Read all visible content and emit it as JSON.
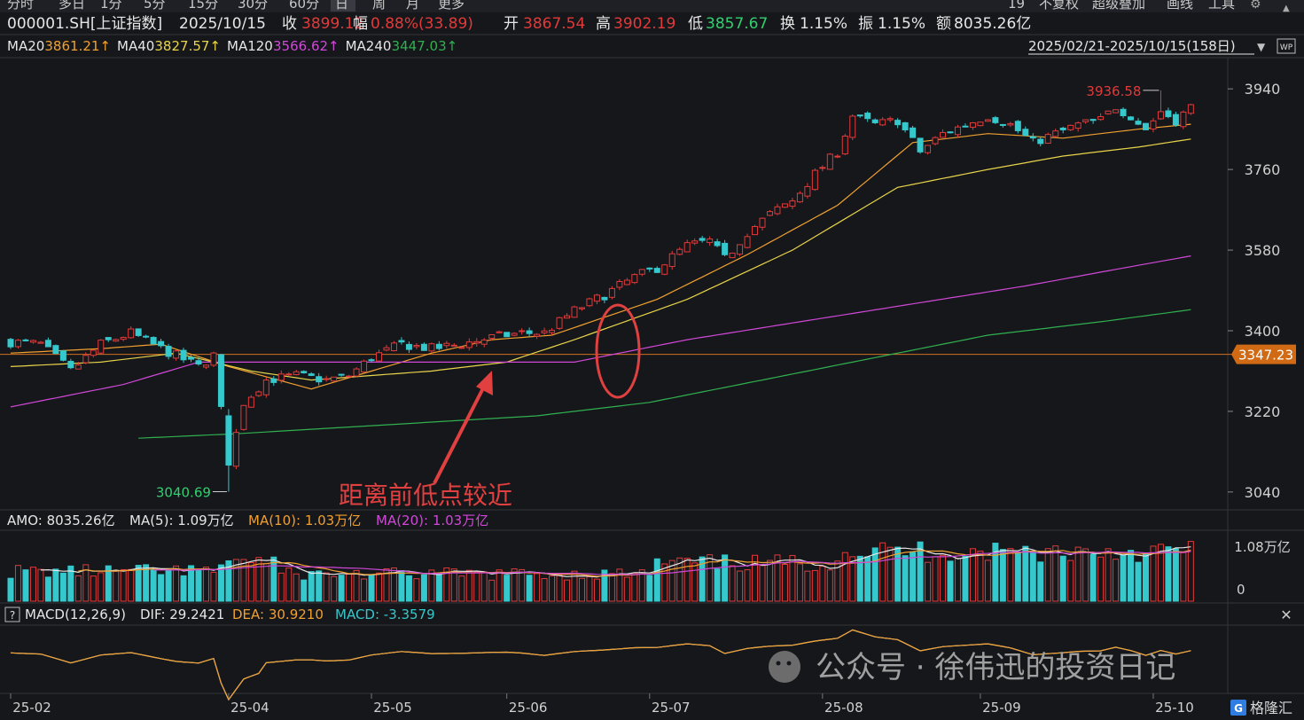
{
  "toolbar": {
    "periods": [
      "分时",
      "多日",
      "1分",
      "5分",
      "15分",
      "30分",
      "60分",
      "日",
      "周",
      "月",
      "更多"
    ],
    "active_period": "日",
    "right_items": [
      "19",
      "不复权",
      "超级叠加",
      "画线",
      "工具"
    ]
  },
  "quote": {
    "symbol": "000001.SH[上证指数]",
    "date": "2025/10/15",
    "close_label": "收",
    "close": "3899.12",
    "change_label": "幅",
    "change": "0.88%(33.89)",
    "open_label": "开",
    "open": "3867.54",
    "high_label": "高",
    "high": "3902.19",
    "low_label": "低",
    "low": "3857.67",
    "turnover_label": "换",
    "turnover": "1.15%",
    "amplitude_label": "振",
    "amplitude": "1.15%",
    "amount_label": "额",
    "amount": "8035.26亿"
  },
  "ma_legend": [
    {
      "name": "MA20",
      "value": "3861.21↑",
      "color": "#f0a030"
    },
    {
      "name": "MA40",
      "value": "3827.57↑",
      "color": "#e8d44a"
    },
    {
      "name": "MA120",
      "value": "3566.62↑",
      "color": "#d048d8"
    },
    {
      "name": "MA240",
      "value": "3447.03↑",
      "color": "#30b050"
    }
  ],
  "range_label": "2025/02/21-2025/10/15(158日)",
  "main_chart": {
    "y_ticks": [
      "3940",
      "3760",
      "3580",
      "3400",
      "3220",
      "3040"
    ],
    "ylim": [
      3010,
      3980
    ],
    "high_mark": "3936.58",
    "low_mark": "3040.69",
    "hline_value": 3347.23,
    "hline_label": "3347.23",
    "annotation": "距离前低点较近"
  },
  "volume_legend": {
    "title": "AMO: 8035.26亿",
    "ma5": "MA(5): 1.09万亿",
    "ma10": "MA(10): 1.03万亿",
    "ma20": "MA(20): 1.03万亿"
  },
  "volume_ticks": [
    "1.08万亿",
    "0"
  ],
  "macd_legend": {
    "title": "MACD(12,26,9)",
    "dif": "DIF: 29.2421",
    "dea": "DEA: 30.9210",
    "macd": "MACD: -3.3579"
  },
  "watermark": "公众号 · 徐伟迅的投资日记",
  "brand": "格隆汇",
  "x_ticks": [
    {
      "label": "25-02",
      "i": 0
    },
    {
      "label": "25-04",
      "i": 29
    },
    {
      "label": "25-05",
      "i": 48
    },
    {
      "label": "25-06",
      "i": 66
    },
    {
      "label": "25-07",
      "i": 85
    },
    {
      "label": "25-08",
      "i": 108
    },
    {
      "label": "25-09",
      "i": 129
    },
    {
      "label": "25-10",
      "i": 152
    }
  ],
  "colors": {
    "up": "#e03a3a",
    "down": "#35c8cc",
    "ma20": "#f0a030",
    "ma40": "#e8d44a",
    "ma120": "#d048d8",
    "ma240": "#30b050",
    "hline": "#d07020",
    "circle": "#e04040"
  },
  "chart_data": {
    "type": "candlestick",
    "x": "trading days 2025-02-21 to 2025-10-15",
    "close_anchors": [
      [
        0,
        3375
      ],
      [
        4,
        3370
      ],
      [
        8,
        3310
      ],
      [
        12,
        3370
      ],
      [
        16,
        3395
      ],
      [
        20,
        3360
      ],
      [
        25,
        3320
      ],
      [
        27,
        3345
      ],
      [
        29,
        3100
      ],
      [
        31,
        3240
      ],
      [
        34,
        3290
      ],
      [
        38,
        3300
      ],
      [
        42,
        3290
      ],
      [
        45,
        3300
      ],
      [
        48,
        3340
      ],
      [
        52,
        3370
      ],
      [
        56,
        3360
      ],
      [
        60,
        3370
      ],
      [
        64,
        3385
      ],
      [
        68,
        3395
      ],
      [
        71,
        3395
      ],
      [
        75,
        3445
      ],
      [
        79,
        3480
      ],
      [
        83,
        3520
      ],
      [
        86,
        3540
      ],
      [
        90,
        3590
      ],
      [
        93,
        3600
      ],
      [
        95,
        3560
      ],
      [
        98,
        3620
      ],
      [
        101,
        3660
      ],
      [
        104,
        3690
      ],
      [
        107,
        3750
      ],
      [
        110,
        3800
      ],
      [
        112,
        3880
      ],
      [
        115,
        3860
      ],
      [
        118,
        3870
      ],
      [
        121,
        3800
      ],
      [
        124,
        3840
      ],
      [
        127,
        3860
      ],
      [
        130,
        3880
      ],
      [
        133,
        3860
      ],
      [
        136,
        3820
      ],
      [
        139,
        3840
      ],
      [
        142,
        3860
      ],
      [
        145,
        3870
      ],
      [
        147,
        3900
      ],
      [
        149,
        3880
      ],
      [
        151,
        3850
      ],
      [
        153,
        3890
      ],
      [
        155,
        3870
      ],
      [
        157,
        3899
      ]
    ],
    "ma_anchors": {
      "MA20": [
        [
          0,
          3350
        ],
        [
          12,
          3360
        ],
        [
          20,
          3370
        ],
        [
          29,
          3320
        ],
        [
          40,
          3270
        ],
        [
          48,
          3310
        ],
        [
          56,
          3350
        ],
        [
          64,
          3380
        ],
        [
          72,
          3390
        ],
        [
          86,
          3470
        ],
        [
          98,
          3570
        ],
        [
          110,
          3680
        ],
        [
          120,
          3820
        ],
        [
          130,
          3840
        ],
        [
          140,
          3830
        ],
        [
          150,
          3850
        ],
        [
          157,
          3861
        ]
      ],
      "MA40": [
        [
          0,
          3320
        ],
        [
          12,
          3330
        ],
        [
          22,
          3350
        ],
        [
          32,
          3310
        ],
        [
          40,
          3290
        ],
        [
          48,
          3300
        ],
        [
          56,
          3310
        ],
        [
          66,
          3330
        ],
        [
          75,
          3380
        ],
        [
          90,
          3470
        ],
        [
          104,
          3580
        ],
        [
          118,
          3720
        ],
        [
          130,
          3760
        ],
        [
          140,
          3790
        ],
        [
          150,
          3810
        ],
        [
          157,
          3828
        ]
      ],
      "MA120": [
        [
          0,
          3230
        ],
        [
          15,
          3280
        ],
        [
          25,
          3330
        ],
        [
          35,
          3330
        ],
        [
          48,
          3330
        ],
        [
          60,
          3330
        ],
        [
          75,
          3330
        ],
        [
          90,
          3380
        ],
        [
          105,
          3420
        ],
        [
          120,
          3460
        ],
        [
          135,
          3500
        ],
        [
          148,
          3540
        ],
        [
          157,
          3567
        ]
      ],
      "MA240": [
        [
          17,
          3160
        ],
        [
          30,
          3170
        ],
        [
          50,
          3190
        ],
        [
          70,
          3210
        ],
        [
          85,
          3240
        ],
        [
          100,
          3290
        ],
        [
          115,
          3340
        ],
        [
          130,
          3390
        ],
        [
          145,
          3420
        ],
        [
          157,
          3447
        ]
      ]
    }
  }
}
